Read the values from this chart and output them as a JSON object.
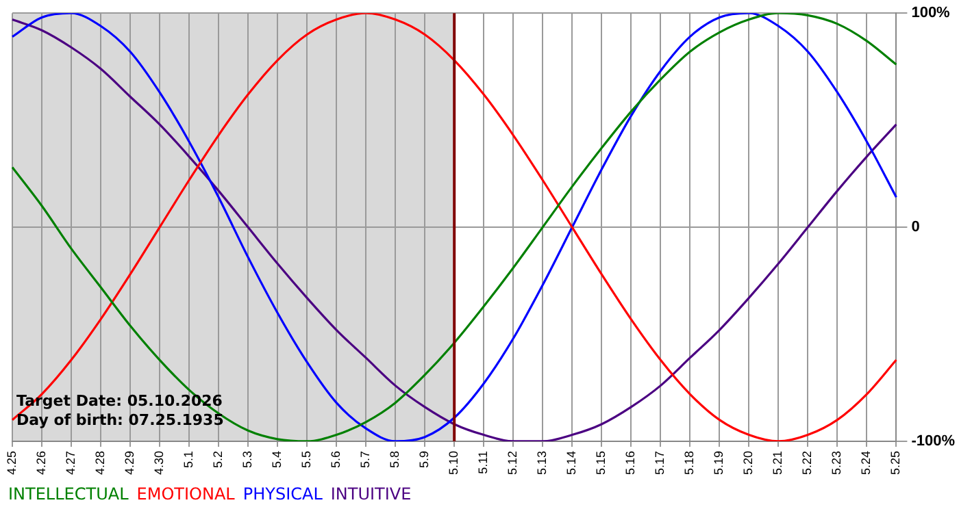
{
  "chart_data": {
    "type": "line",
    "categories": [
      "4.25",
      "4.26",
      "4.27",
      "4.28",
      "4.29",
      "4.30",
      "5.1",
      "5.2",
      "5.3",
      "5.4",
      "5.5",
      "5.6",
      "5.7",
      "5.8",
      "5.9",
      "5.10",
      "5.11",
      "5.12",
      "5.13",
      "5.14",
      "5.15",
      "5.16",
      "5.17",
      "5.18",
      "5.19",
      "5.20",
      "5.21",
      "5.22",
      "5.23",
      "5.24",
      "5.25"
    ],
    "series": [
      {
        "name": "INTELLECTUAL",
        "color": "#008000",
        "values": [
          28,
          10,
          -10,
          -28,
          -46,
          -62,
          -76,
          -87,
          -95,
          -99,
          -100,
          -97,
          -91,
          -82,
          -69,
          -54,
          -37,
          -19,
          0,
          19,
          37,
          54,
          69,
          82,
          91,
          97,
          100,
          99,
          95,
          87,
          76
        ]
      },
      {
        "name": "EMOTIONAL",
        "color": "#ff0000",
        "values": [
          -90,
          -78,
          -62,
          -43,
          -22,
          0,
          22,
          43,
          62,
          78,
          90,
          97,
          100,
          97,
          90,
          78,
          62,
          43,
          22,
          0,
          -22,
          -43,
          -62,
          -78,
          -90,
          -97,
          -100,
          -97,
          -90,
          -78,
          -62
        ]
      },
      {
        "name": "PHYSICAL",
        "color": "#0000ff",
        "values": [
          89,
          98,
          100,
          94,
          82,
          63,
          40,
          14,
          -14,
          -40,
          -63,
          -82,
          -94,
          -100,
          -98,
          -89,
          -73,
          -52,
          -27,
          0,
          27,
          52,
          73,
          89,
          98,
          100,
          94,
          82,
          63,
          40,
          14
        ]
      },
      {
        "name": "INTUITIVE",
        "color": "#4b0082",
        "values": [
          97,
          92,
          84,
          74,
          61,
          48,
          33,
          17,
          0,
          -17,
          -33,
          -48,
          -61,
          -74,
          -84,
          -92,
          -97,
          -100,
          -100,
          -97,
          -92,
          -84,
          -74,
          -61,
          -48,
          -33,
          -17,
          0,
          17,
          33,
          48
        ]
      }
    ],
    "ylim": [
      -100,
      100
    ],
    "yticks": [
      {
        "value": 100,
        "label": "100%"
      },
      0,
      {
        "value": -100,
        "label": "-100%"
      }
    ],
    "grid": true,
    "legend": "bottom left",
    "line_style": "solid",
    "marker": "none",
    "ref_lines": [
      {
        "axis": "x",
        "value": "5.10",
        "color": "#800000"
      }
    ],
    "bands": [
      {
        "axis": "x",
        "from": "4.25",
        "to": "5.10",
        "color": "#d9d9d9"
      }
    ],
    "annotations": [
      "Target Date: 05.10.2026",
      "Day of birth: 07.25.1935"
    ]
  }
}
